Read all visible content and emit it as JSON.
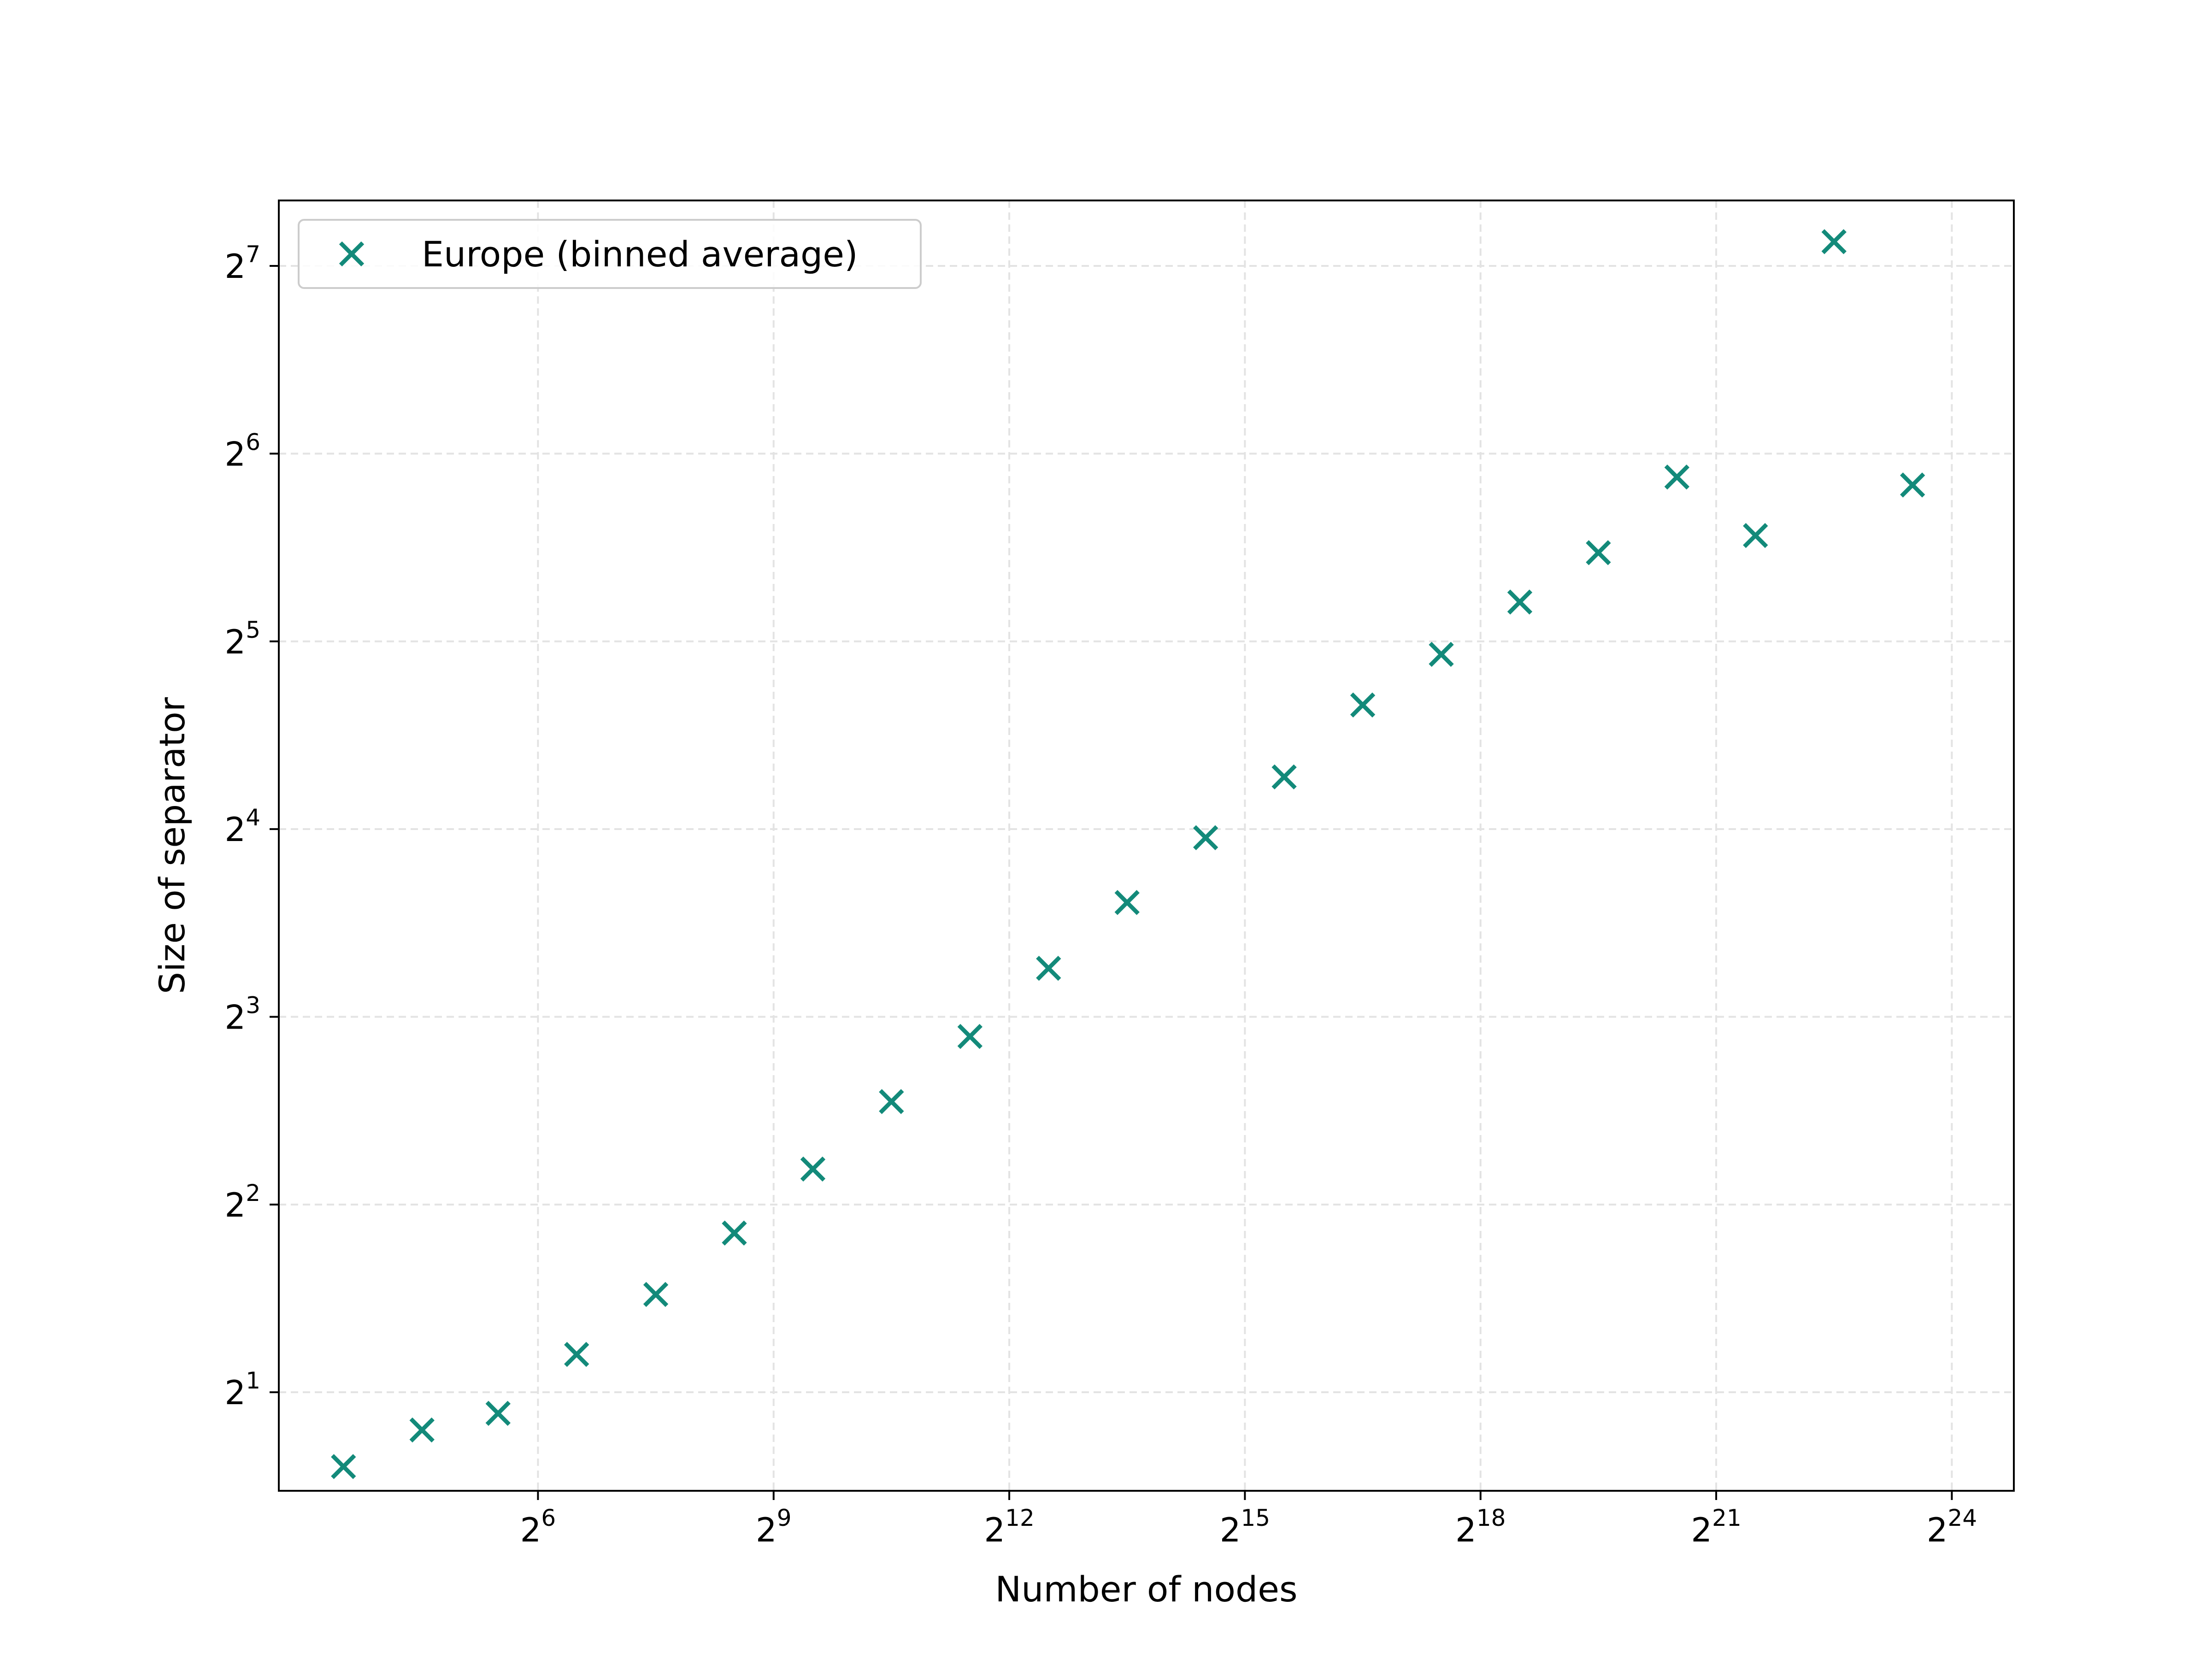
{
  "chart_data": {
    "type": "scatter",
    "title": "",
    "xlabel": "Number of nodes",
    "ylabel": "Size of separator",
    "x_scale": "log2",
    "y_scale": "log2",
    "xlim": [
      6.5,
      29000000
    ],
    "ylim": [
      1.39,
      163
    ],
    "x_ticks": [
      {
        "base": "2",
        "exp": "6",
        "value": 64
      },
      {
        "base": "2",
        "exp": "9",
        "value": 512
      },
      {
        "base": "2",
        "exp": "12",
        "value": 4096
      },
      {
        "base": "2",
        "exp": "15",
        "value": 32768
      },
      {
        "base": "2",
        "exp": "18",
        "value": 262144
      },
      {
        "base": "2",
        "exp": "21",
        "value": 2097152
      },
      {
        "base": "2",
        "exp": "24",
        "value": 16777216
      }
    ],
    "y_ticks": [
      {
        "base": "2",
        "exp": "1",
        "value": 2
      },
      {
        "base": "2",
        "exp": "2",
        "value": 4
      },
      {
        "base": "2",
        "exp": "3",
        "value": 8
      },
      {
        "base": "2",
        "exp": "4",
        "value": 16
      },
      {
        "base": "2",
        "exp": "5",
        "value": 32
      },
      {
        "base": "2",
        "exp": "6",
        "value": 64
      },
      {
        "base": "2",
        "exp": "7",
        "value": 128
      }
    ],
    "grid": true,
    "legend_position": "top-left",
    "series": [
      {
        "name": "Europe (binned average)",
        "color": "#138a7a",
        "marker": "x",
        "x": [
          11.5,
          23,
          45,
          90,
          181,
          362,
          724,
          1448,
          2896,
          5793,
          11585,
          23170,
          46341,
          92682,
          185364,
          370728,
          741455,
          1482910,
          2965821,
          5931642,
          11863283
        ],
        "y": [
          1.52,
          1.74,
          1.85,
          2.3,
          2.87,
          3.6,
          4.56,
          5.85,
          7.44,
          9.57,
          12.2,
          15.5,
          19.4,
          25.3,
          30.5,
          37.0,
          44.4,
          58.7,
          47.3,
          140,
          57.0
        ]
      }
    ]
  }
}
